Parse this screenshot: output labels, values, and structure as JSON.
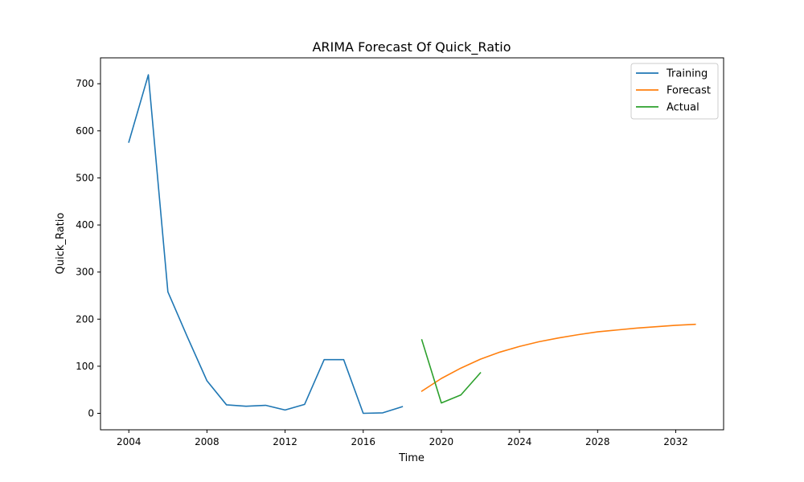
{
  "chart_data": {
    "type": "line",
    "title": "ARIMA Forecast Of Quick_Ratio",
    "xlabel": "Time",
    "ylabel": "Quick_Ratio",
    "xlim": [
      2002.55,
      2034.45
    ],
    "ylim": [
      -35,
      755
    ],
    "xticks": [
      2004,
      2008,
      2012,
      2016,
      2020,
      2024,
      2028,
      2032
    ],
    "yticks": [
      0,
      100,
      200,
      300,
      400,
      500,
      600,
      700
    ],
    "grid": false,
    "legend_position": "top-right",
    "series": [
      {
        "name": "Training",
        "color": "#1f77b4",
        "x": [
          2004,
          2005,
          2006,
          2007,
          2008,
          2009,
          2010,
          2011,
          2012,
          2013,
          2014,
          2015,
          2016,
          2017,
          2018
        ],
        "y": [
          576,
          719,
          258,
          162,
          69,
          18,
          15,
          17,
          7,
          19,
          114,
          114,
          0,
          1,
          14
        ]
      },
      {
        "name": "Forecast",
        "color": "#ff7f0e",
        "x": [
          2019,
          2020,
          2021,
          2022,
          2023,
          2024,
          2025,
          2026,
          2027,
          2028,
          2029,
          2030,
          2031,
          2032,
          2033
        ],
        "y": [
          47,
          74,
          96,
          115,
          130,
          142,
          152,
          160,
          167,
          173,
          177,
          181,
          184,
          187,
          189
        ]
      },
      {
        "name": "Actual",
        "color": "#2ca02c",
        "x": [
          2019,
          2020,
          2021,
          2022
        ],
        "y": [
          156,
          22,
          39,
          86
        ]
      }
    ]
  }
}
